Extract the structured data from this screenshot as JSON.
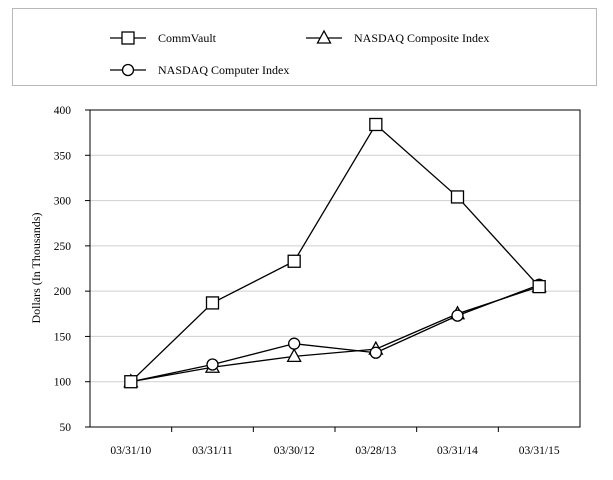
{
  "chart_data": {
    "type": "line",
    "title": "",
    "xlabel": "",
    "ylabel": "Dollars (In Thousands)",
    "categories": [
      "03/31/10",
      "03/31/11",
      "03/30/12",
      "03/28/13",
      "03/31/14",
      "03/31/15"
    ],
    "ylim": [
      50,
      400
    ],
    "yticks": [
      50,
      100,
      150,
      200,
      250,
      300,
      350,
      400
    ],
    "grid": "horizontal",
    "legend_position": "top",
    "series": [
      {
        "name": "CommVault",
        "marker": "square",
        "values": [
          100,
          187,
          233,
          384,
          304,
          205
        ]
      },
      {
        "name": "NASDAQ Composite Index",
        "marker": "triangle",
        "values": [
          100,
          116,
          128,
          136,
          175,
          205
        ]
      },
      {
        "name": "NASDAQ Computer Index",
        "marker": "circle",
        "values": [
          100,
          119,
          142,
          132,
          173,
          207
        ]
      }
    ],
    "colors": {
      "line": "#000000",
      "grid": "#cfcfcf",
      "marker_fill": "#ffffff"
    }
  }
}
